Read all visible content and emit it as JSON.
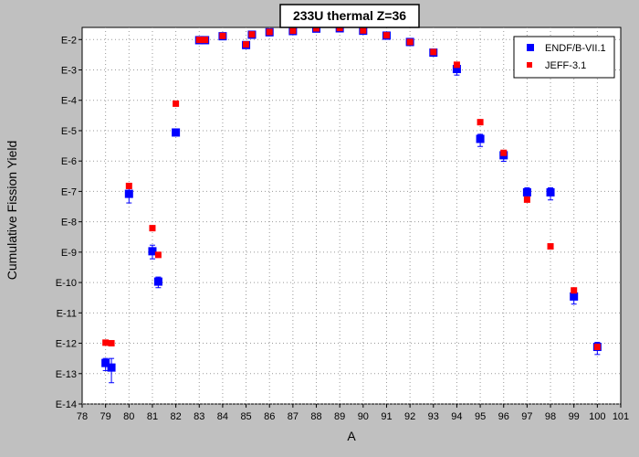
{
  "chart_data": {
    "type": "scatter",
    "title": "233U thermal Z=36",
    "xlabel": "A",
    "ylabel": "Cumulative Fission Yield",
    "xlim": [
      78,
      101
    ],
    "ylim_log10": [
      -14,
      -1.6
    ],
    "y_scale": "log",
    "grid": true,
    "legend_position": "top-right",
    "x_ticks": [
      "78",
      "79",
      "80",
      "81",
      "82",
      "83",
      "84",
      "85",
      "86",
      "87",
      "88",
      "89",
      "90",
      "91",
      "92",
      "93",
      "94",
      "95",
      "96",
      "97",
      "98",
      "99",
      "100",
      "101"
    ],
    "y_ticks": [
      {
        "label": "E-2",
        "exp": -2
      },
      {
        "label": "E-3",
        "exp": -3
      },
      {
        "label": "E-4",
        "exp": -4
      },
      {
        "label": "E-5",
        "exp": -5
      },
      {
        "label": "E-6",
        "exp": -6
      },
      {
        "label": "E-7",
        "exp": -7
      },
      {
        "label": "E-8",
        "exp": -8
      },
      {
        "label": "E-9",
        "exp": -9
      },
      {
        "label": "E-10",
        "exp": -10
      },
      {
        "label": "E-11",
        "exp": -11
      },
      {
        "label": "E-12",
        "exp": -12
      },
      {
        "label": "E-13",
        "exp": -13
      },
      {
        "label": "E-14",
        "exp": -14
      }
    ],
    "series": [
      {
        "name": "ENDF/B-VII.1",
        "color": "#0000ff",
        "marker": "square",
        "points": [
          {
            "x": 79.0,
            "log10y": -12.65,
            "err_lo": 0.25,
            "err_hi": 0.15
          },
          {
            "x": 79.25,
            "log10y": -12.8,
            "err_lo": 0.5,
            "err_hi": 0.3
          },
          {
            "x": 80,
            "log10y": -7.08,
            "err_lo": 0.3,
            "err_hi": 0.2
          },
          {
            "x": 81,
            "log10y": -8.97,
            "err_lo": 0.25,
            "err_hi": 0.2
          },
          {
            "x": 81.25,
            "log10y": -9.97,
            "err_lo": 0.2,
            "err_hi": 0.15
          },
          {
            "x": 82,
            "log10y": -5.06,
            "err_lo": 0.0,
            "err_hi": 0.0
          },
          {
            "x": 83,
            "log10y": -2.02,
            "err_lo": 0.0,
            "err_hi": 0.0
          },
          {
            "x": 83.25,
            "log10y": -2.02,
            "err_lo": 0.0,
            "err_hi": 0.0
          },
          {
            "x": 84,
            "log10y": -1.89,
            "err_lo": 0.0,
            "err_hi": 0.0
          },
          {
            "x": 85,
            "log10y": -2.18,
            "err_lo": 0.0,
            "err_hi": 0.0
          },
          {
            "x": 85.25,
            "log10y": -1.84,
            "err_lo": 0.0,
            "err_hi": 0.0
          },
          {
            "x": 86,
            "log10y": -1.76,
            "err_lo": 0.0,
            "err_hi": 0.0
          },
          {
            "x": 87,
            "log10y": -1.72,
            "err_lo": 0.0,
            "err_hi": 0.0
          },
          {
            "x": 88,
            "log10y": -1.64,
            "err_lo": 0.0,
            "err_hi": 0.0
          },
          {
            "x": 89,
            "log10y": -1.63,
            "err_lo": 0.0,
            "err_hi": 0.0
          },
          {
            "x": 90,
            "log10y": -1.71,
            "err_lo": 0.0,
            "err_hi": 0.0
          },
          {
            "x": 91,
            "log10y": -1.87,
            "err_lo": 0.0,
            "err_hi": 0.0
          },
          {
            "x": 92,
            "log10y": -2.08,
            "err_lo": 0.0,
            "err_hi": 0.0
          },
          {
            "x": 93,
            "log10y": -2.43,
            "err_lo": 0.05,
            "err_hi": 0.05
          },
          {
            "x": 94,
            "log10y": -2.97,
            "err_lo": 0.2,
            "err_hi": 0.15
          },
          {
            "x": 95,
            "log10y": -5.27,
            "err_lo": 0.25,
            "err_hi": 0.15
          },
          {
            "x": 96,
            "log10y": -5.81,
            "err_lo": 0.2,
            "err_hi": 0.15
          },
          {
            "x": 97,
            "log10y": -7.03,
            "err_lo": 0.2,
            "err_hi": 0.15
          },
          {
            "x": 98,
            "log10y": -7.03,
            "err_lo": 0.25,
            "err_hi": 0.15
          },
          {
            "x": 99,
            "log10y": -10.46,
            "err_lo": 0.25,
            "err_hi": 0.15
          },
          {
            "x": 100,
            "log10y": -12.12,
            "err_lo": 0.25,
            "err_hi": 0.15
          }
        ]
      },
      {
        "name": "JEFF-3.1",
        "color": "#ff0000",
        "marker": "square",
        "points": [
          {
            "x": 79.0,
            "log10y": -11.98,
            "err_lo": 0.0,
            "err_hi": 0.0
          },
          {
            "x": 79.25,
            "log10y": -12.0,
            "err_lo": 0.0,
            "err_hi": 0.0
          },
          {
            "x": 80,
            "log10y": -6.82,
            "err_lo": 0.0,
            "err_hi": 0.0
          },
          {
            "x": 81,
            "log10y": -8.21,
            "err_lo": 0.0,
            "err_hi": 0.0
          },
          {
            "x": 81.25,
            "log10y": -9.09,
            "err_lo": 0.0,
            "err_hi": 0.0
          },
          {
            "x": 82,
            "log10y": -4.11,
            "err_lo": 0.0,
            "err_hi": 0.0
          },
          {
            "x": 83,
            "log10y": -2.01,
            "err_lo": 0.0,
            "err_hi": 0.0
          },
          {
            "x": 83.25,
            "log10y": -2.01,
            "err_lo": 0.0,
            "err_hi": 0.0
          },
          {
            "x": 84,
            "log10y": -1.88,
            "err_lo": 0.0,
            "err_hi": 0.0
          },
          {
            "x": 85,
            "log10y": -2.16,
            "err_lo": 0.0,
            "err_hi": 0.0
          },
          {
            "x": 85.25,
            "log10y": -1.83,
            "err_lo": 0.0,
            "err_hi": 0.0
          },
          {
            "x": 86,
            "log10y": -1.75,
            "err_lo": 0.0,
            "err_hi": 0.0
          },
          {
            "x": 87,
            "log10y": -1.71,
            "err_lo": 0.0,
            "err_hi": 0.0
          },
          {
            "x": 88,
            "log10y": -1.63,
            "err_lo": 0.0,
            "err_hi": 0.0
          },
          {
            "x": 89,
            "log10y": -1.62,
            "err_lo": 0.0,
            "err_hi": 0.0
          },
          {
            "x": 90,
            "log10y": -1.7,
            "err_lo": 0.0,
            "err_hi": 0.0
          },
          {
            "x": 91,
            "log10y": -1.86,
            "err_lo": 0.0,
            "err_hi": 0.0
          },
          {
            "x": 92,
            "log10y": -2.08,
            "err_lo": 0.0,
            "err_hi": 0.0
          },
          {
            "x": 93,
            "log10y": -2.41,
            "err_lo": 0.0,
            "err_hi": 0.0
          },
          {
            "x": 94,
            "log10y": -2.83,
            "err_lo": 0.0,
            "err_hi": 0.0
          },
          {
            "x": 95,
            "log10y": -4.72,
            "err_lo": 0.0,
            "err_hi": 0.0
          },
          {
            "x": 96,
            "log10y": -5.73,
            "err_lo": 0.0,
            "err_hi": 0.0
          },
          {
            "x": 97,
            "log10y": -7.27,
            "err_lo": 0.0,
            "err_hi": 0.0
          },
          {
            "x": 98,
            "log10y": -8.81,
            "err_lo": 0.0,
            "err_hi": 0.0
          },
          {
            "x": 99,
            "log10y": -10.26,
            "err_lo": 0.0,
            "err_hi": 0.0
          },
          {
            "x": 100,
            "log10y": -12.12,
            "err_lo": 0.0,
            "err_hi": 0.0
          }
        ]
      }
    ]
  }
}
